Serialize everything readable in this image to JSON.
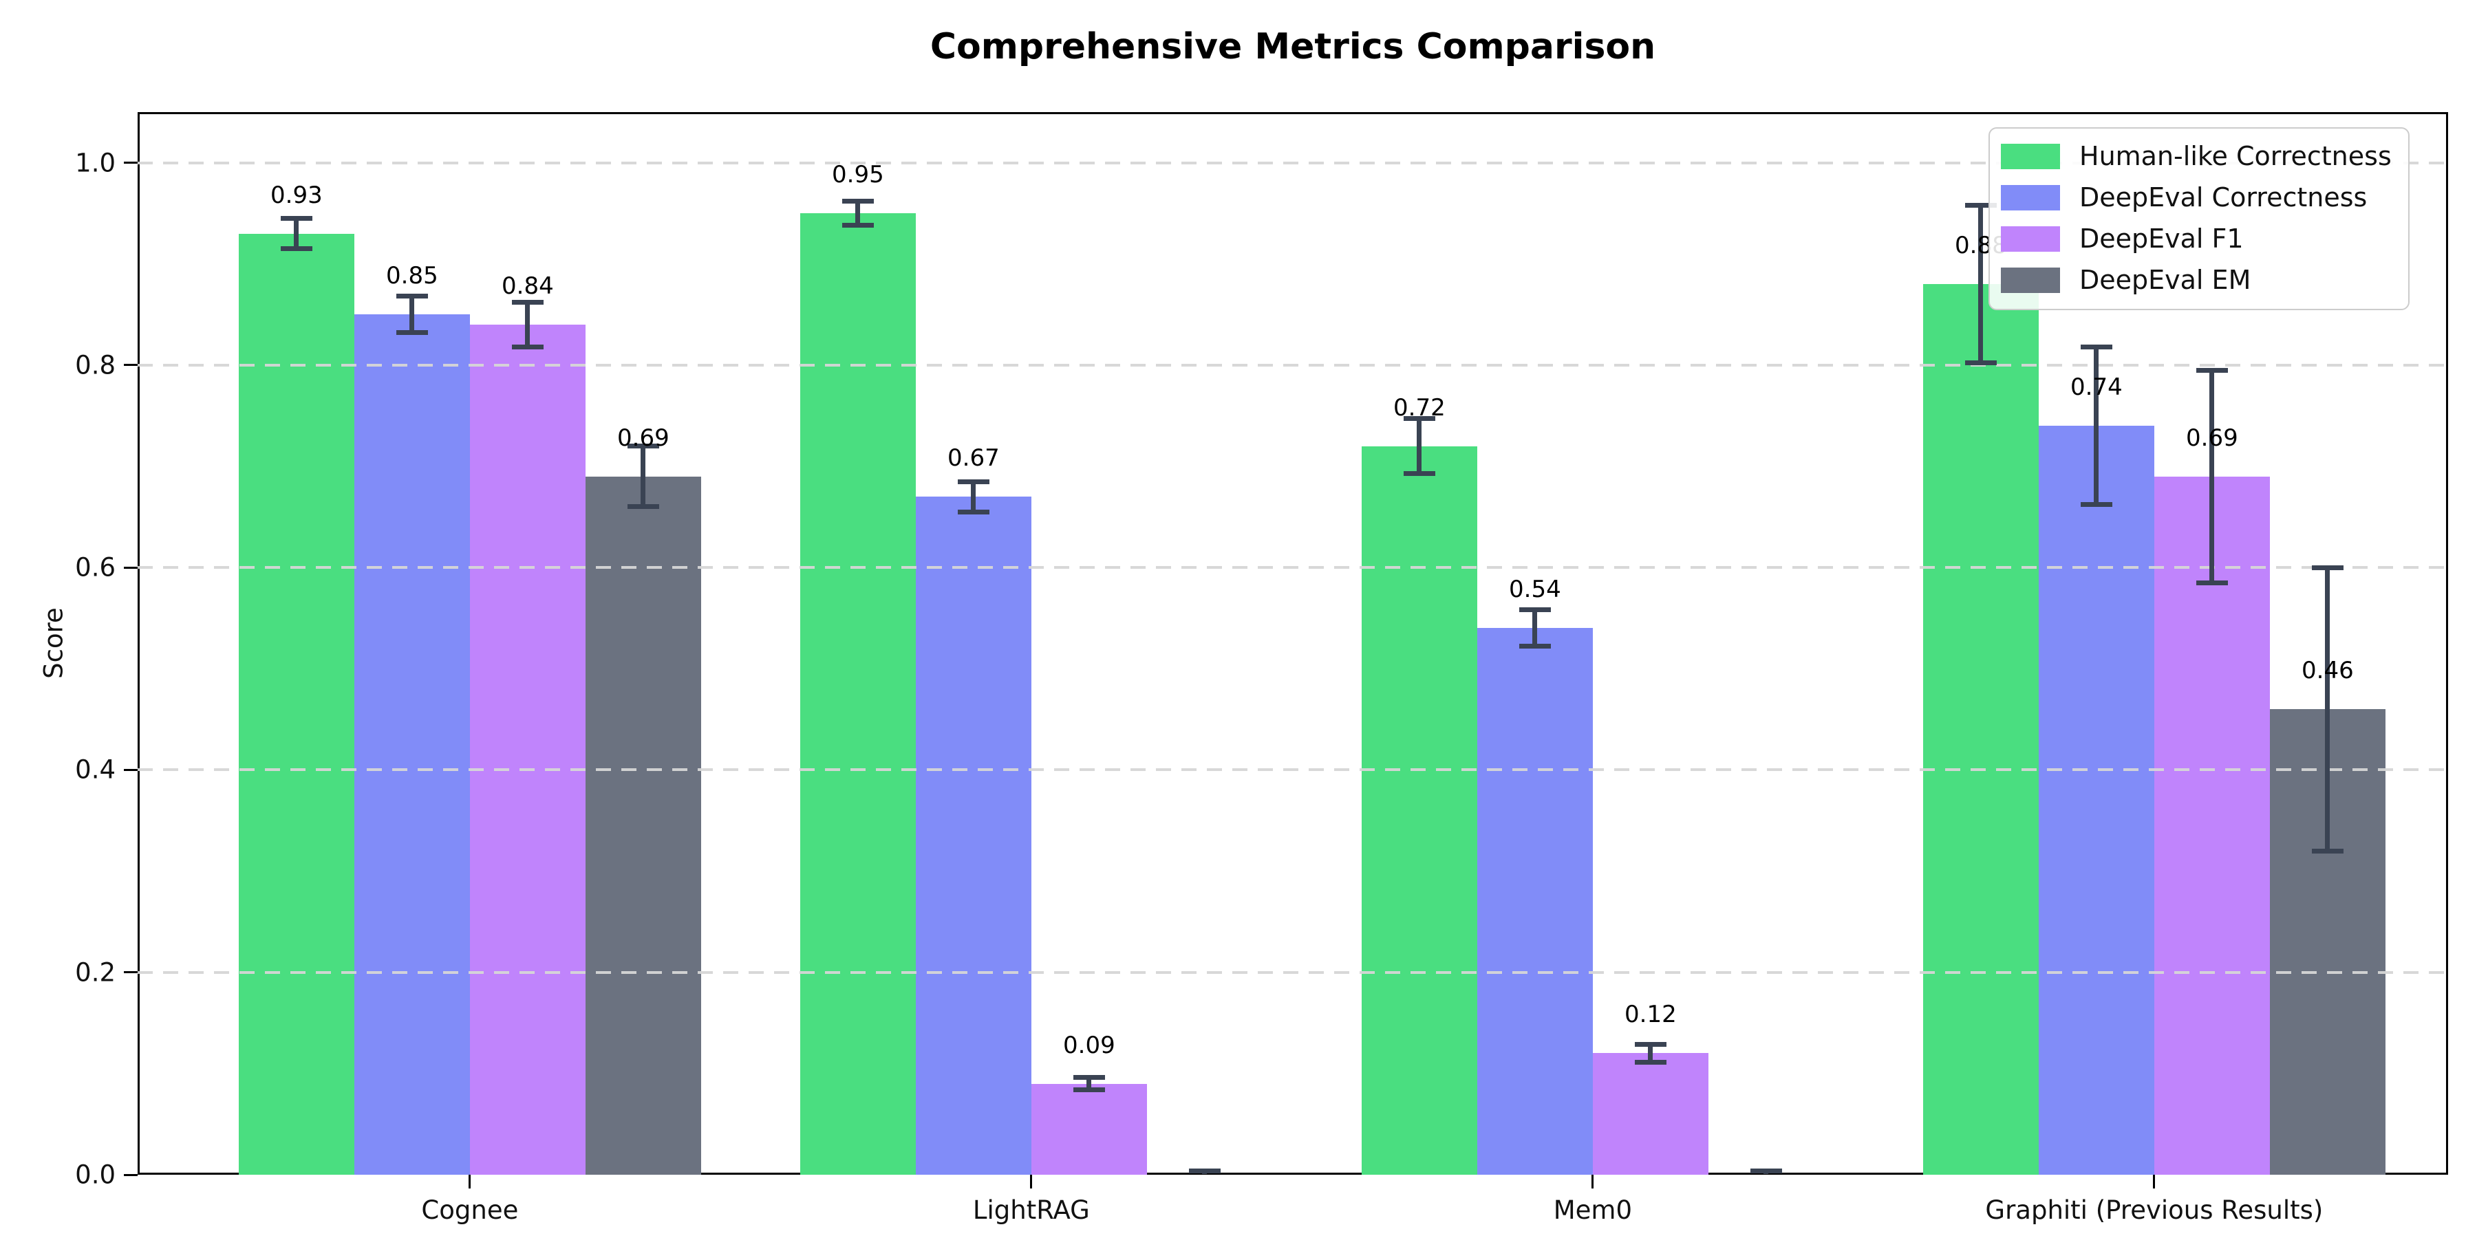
{
  "chart_data": {
    "type": "bar",
    "title": "Comprehensive Metrics Comparison",
    "xlabel": "",
    "ylabel": "Score",
    "ylim": [
      0,
      1.05
    ],
    "yticks": [
      "0.0",
      "0.2",
      "0.4",
      "0.6",
      "0.8",
      "1.0"
    ],
    "grid": "horizontal dashed",
    "legend_position": "upper right",
    "categories": [
      "Cognee",
      "LightRAG",
      "Mem0",
      "Graphiti (Previous Results)"
    ],
    "series": [
      {
        "name": "Human-like Correctness",
        "color": "#4ade80",
        "values": [
          0.93,
          0.95,
          0.72,
          0.88
        ],
        "errors": [
          0.015,
          0.012,
          0.027,
          0.078
        ],
        "labels": [
          "0.93",
          "0.95",
          "0.72",
          "0.88"
        ]
      },
      {
        "name": "DeepEval Correctness",
        "color": "#818cf8",
        "values": [
          0.85,
          0.67,
          0.54,
          0.74
        ],
        "errors": [
          0.018,
          0.015,
          0.018,
          0.078
        ],
        "labels": [
          "0.85",
          "0.67",
          "0.54",
          "0.74"
        ]
      },
      {
        "name": "DeepEval F1",
        "color": "#c084fc",
        "values": [
          0.84,
          0.09,
          0.12,
          0.69
        ],
        "errors": [
          0.022,
          0.006,
          0.009,
          0.105
        ],
        "labels": [
          "0.84",
          "0.09",
          "0.12",
          "0.69"
        ]
      },
      {
        "name": "DeepEval EM",
        "color": "#6b7280",
        "values": [
          0.69,
          0.0,
          0.0,
          0.46
        ],
        "errors": [
          0.03,
          0.004,
          0.004,
          0.14
        ],
        "labels": [
          "0.69",
          "",
          "",
          "0.46"
        ]
      }
    ],
    "error_bar_color": "#3a4353",
    "gridline_color": "#d6d6d6",
    "axis_color": "#000000"
  }
}
